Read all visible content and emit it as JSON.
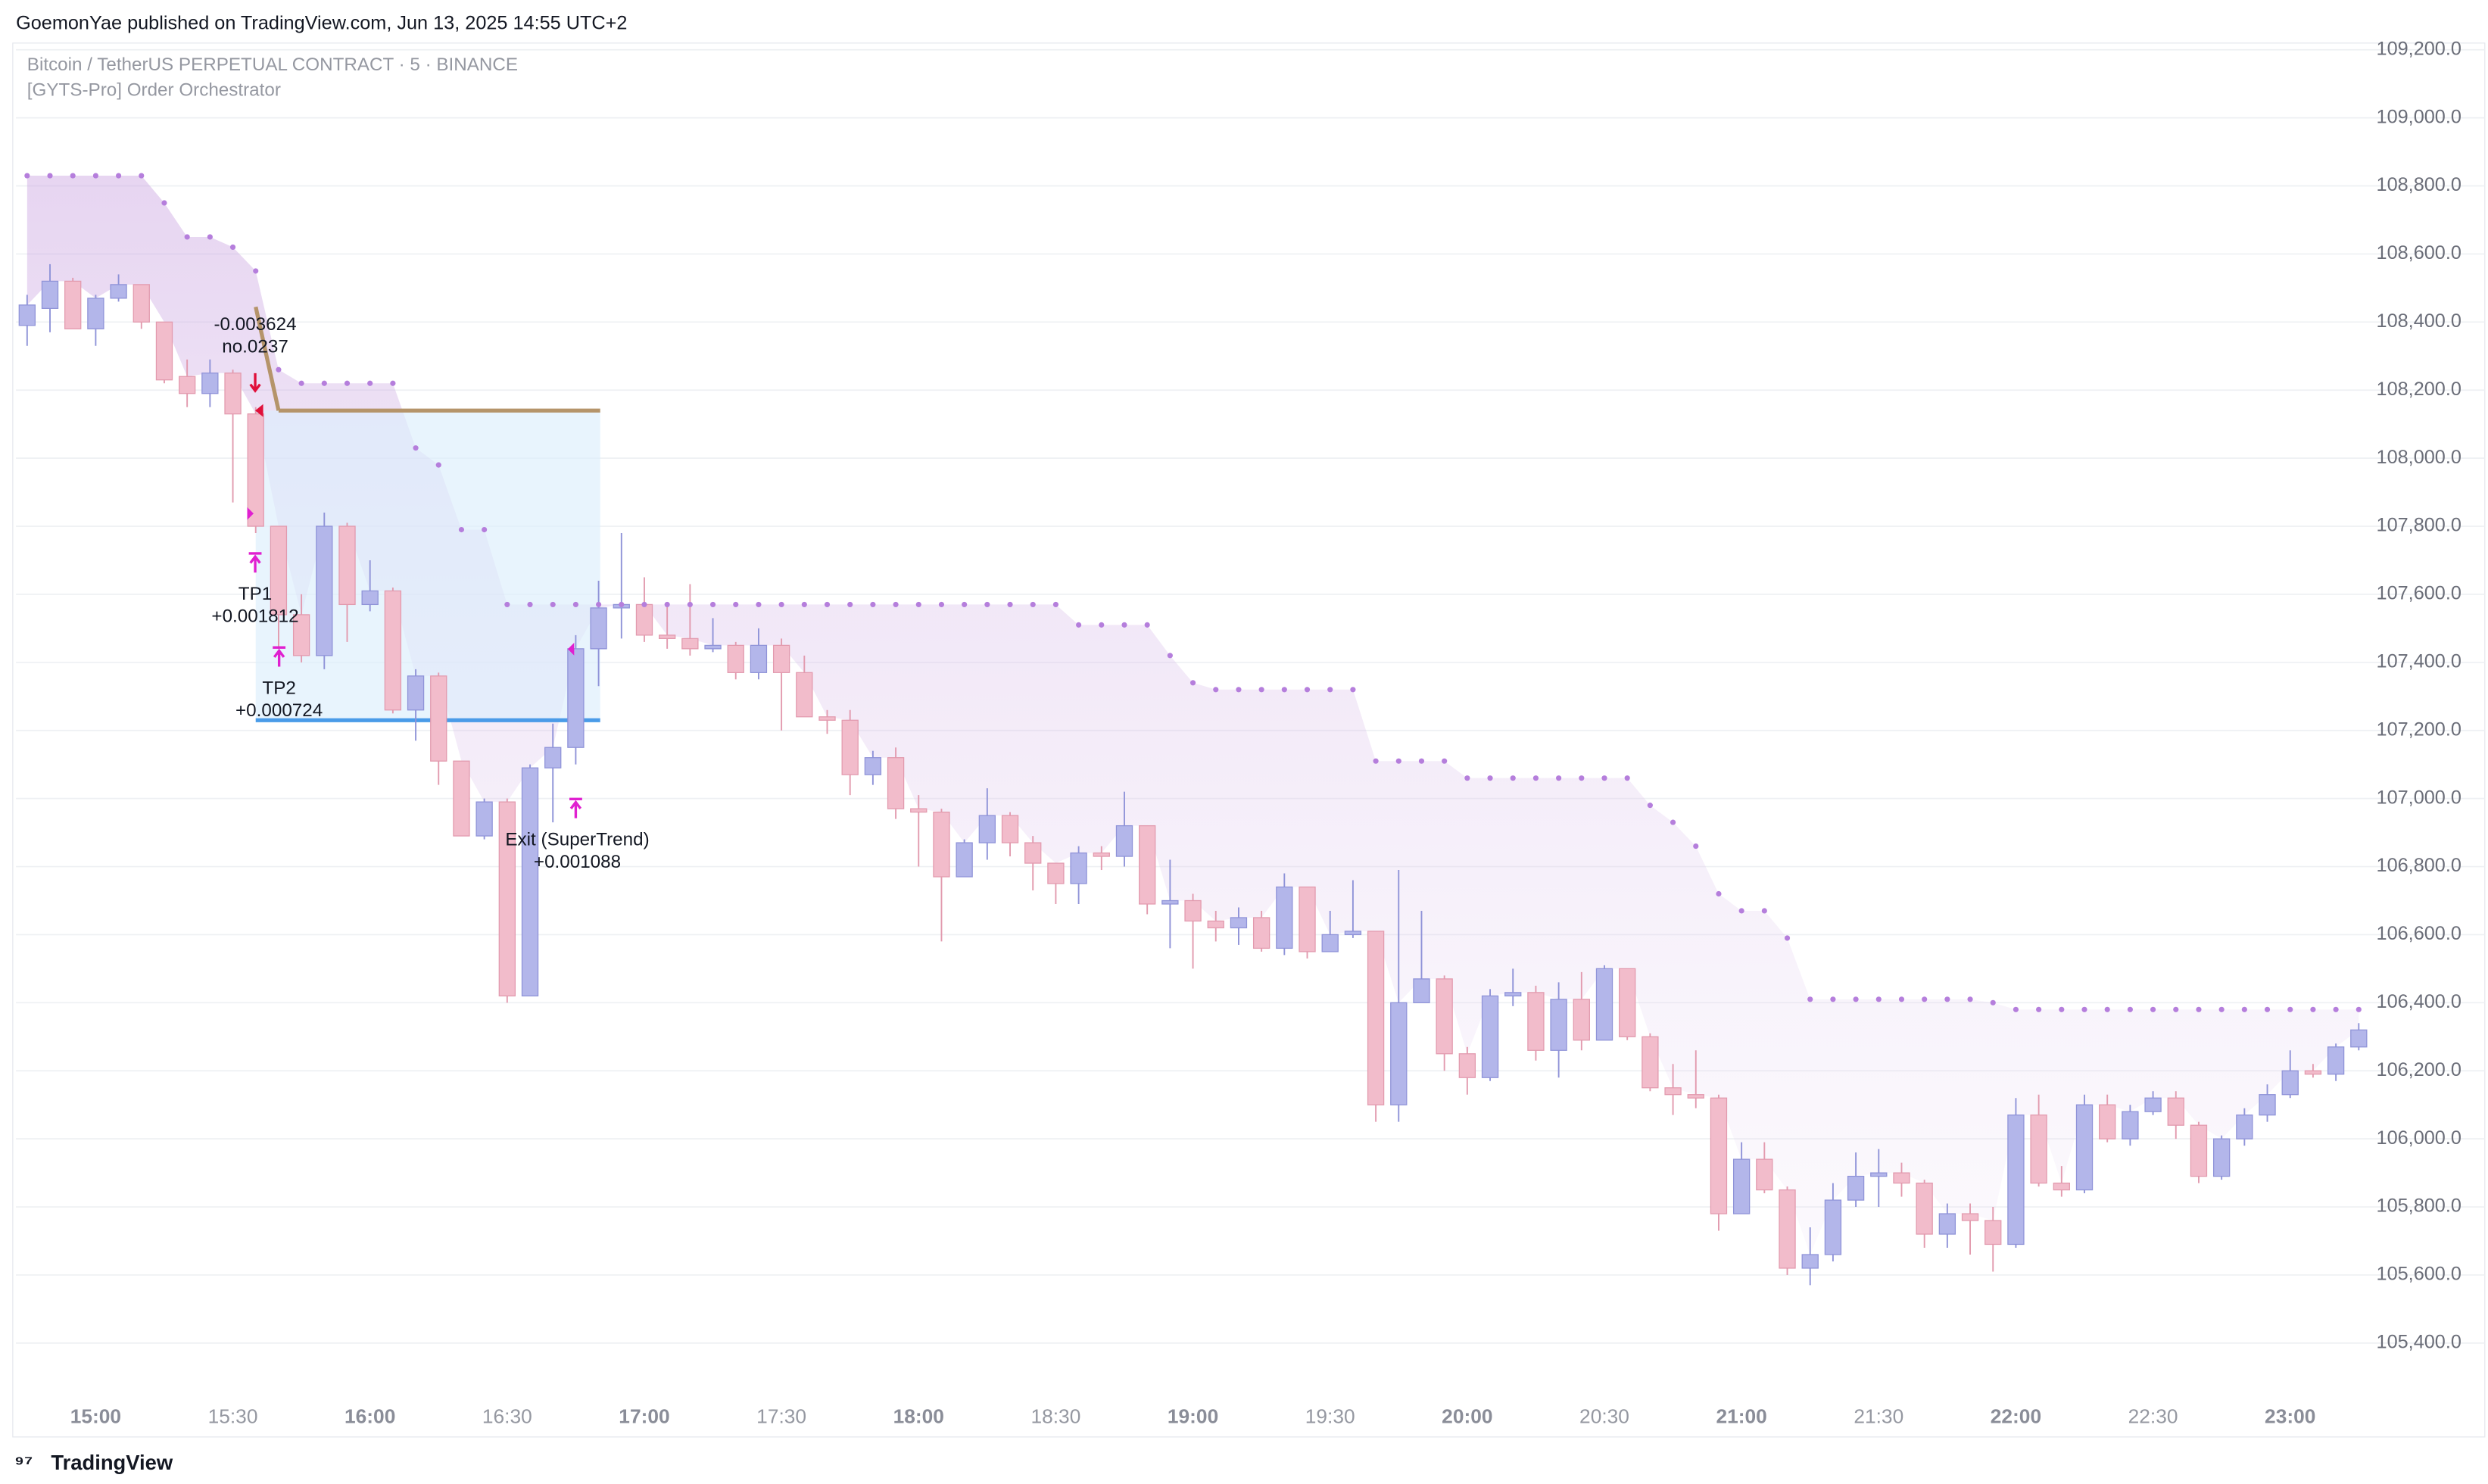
{
  "header": {
    "published": "GoemonYae published on TradingView.com, Jun 13, 2025 14:55 UTC+2",
    "brand": "TradingView"
  },
  "chart_data": {
    "type": "candlestick",
    "title": "Bitcoin / TetherUS PERPETUAL CONTRACT · 5 · BINANCE",
    "subtitle": "[GYTS-Pro] Order Orchestrator",
    "up_color": "#b3b6ea",
    "down_color": "#f2bccb",
    "categories": [
      null,
      null,
      null,
      "15:00",
      null,
      null,
      null,
      null,
      null,
      "15:30",
      null,
      null,
      null,
      null,
      null,
      "16:00",
      null,
      null,
      null,
      null,
      null,
      "16:30",
      null,
      null,
      null,
      null,
      null,
      "17:00",
      null,
      null,
      null,
      null,
      null,
      "17:30",
      null,
      null,
      null,
      null,
      null,
      "18:00",
      null,
      null,
      null,
      null,
      null,
      "18:30",
      null,
      null,
      null,
      null,
      null,
      "19:00",
      null,
      null,
      null,
      null,
      null,
      "19:30",
      null,
      null,
      null,
      null,
      null,
      "20:00",
      null,
      null,
      null,
      null,
      null,
      "20:30",
      null,
      null,
      null,
      null,
      null,
      "21:00",
      null,
      null,
      null,
      null,
      null,
      "21:30",
      null,
      null,
      null,
      null,
      null,
      "22:00",
      null,
      null,
      null,
      null,
      null,
      "22:30",
      null,
      null,
      null,
      null,
      null,
      "23:00",
      null,
      null,
      null
    ],
    "ohlc": [
      [
        108390,
        108480,
        108330,
        108450
      ],
      [
        108440,
        108570,
        108370,
        108520
      ],
      [
        108520,
        108530,
        108380,
        108380
      ],
      [
        108380,
        108480,
        108330,
        108470
      ],
      [
        108470,
        108540,
        108460,
        108510
      ],
      [
        108510,
        108510,
        108380,
        108400
      ],
      [
        108400,
        108400,
        108220,
        108230
      ],
      [
        108240,
        108290,
        108150,
        108190
      ],
      [
        108190,
        108290,
        108150,
        108250
      ],
      [
        108250,
        108260,
        107870,
        108130
      ],
      [
        108130,
        108150,
        107780,
        107800
      ],
      [
        107800,
        107800,
        107440,
        107540
      ],
      [
        107540,
        107600,
        107400,
        107420
      ],
      [
        107420,
        107840,
        107380,
        107800
      ],
      [
        107800,
        107810,
        107460,
        107570
      ],
      [
        107570,
        107700,
        107550,
        107610
      ],
      [
        107610,
        107620,
        107250,
        107260
      ],
      [
        107260,
        107380,
        107170,
        107360
      ],
      [
        107360,
        107370,
        107040,
        107110
      ],
      [
        107110,
        107110,
        106890,
        106890
      ],
      [
        106890,
        107000,
        106880,
        106990
      ],
      [
        106990,
        107000,
        106400,
        106420
      ],
      [
        106420,
        107100,
        106420,
        107090
      ],
      [
        107090,
        107220,
        106930,
        107150
      ],
      [
        107150,
        107480,
        107100,
        107440
      ],
      [
        107440,
        107640,
        107330,
        107560
      ],
      [
        107560,
        107780,
        107470,
        107570
      ],
      [
        107570,
        107650,
        107460,
        107480
      ],
      [
        107480,
        107570,
        107440,
        107470
      ],
      [
        107470,
        107630,
        107420,
        107440
      ],
      [
        107440,
        107530,
        107430,
        107450
      ],
      [
        107450,
        107460,
        107350,
        107370
      ],
      [
        107370,
        107500,
        107350,
        107450
      ],
      [
        107450,
        107470,
        107200,
        107370
      ],
      [
        107370,
        107420,
        107240,
        107240
      ],
      [
        107240,
        107260,
        107190,
        107230
      ],
      [
        107230,
        107260,
        107010,
        107070
      ],
      [
        107070,
        107140,
        107040,
        107120
      ],
      [
        107120,
        107150,
        106940,
        106970
      ],
      [
        106970,
        107010,
        106800,
        106960
      ],
      [
        106960,
        106970,
        106580,
        106770
      ],
      [
        106770,
        106880,
        106770,
        106870
      ],
      [
        106870,
        107030,
        106820,
        106950
      ],
      [
        106950,
        106960,
        106830,
        106870
      ],
      [
        106870,
        106890,
        106730,
        106810
      ],
      [
        106810,
        106810,
        106690,
        106750
      ],
      [
        106750,
        106860,
        106690,
        106840
      ],
      [
        106840,
        106860,
        106790,
        106830
      ],
      [
        106830,
        107020,
        106800,
        106920
      ],
      [
        106920,
        106920,
        106660,
        106690
      ],
      [
        106690,
        106820,
        106560,
        106700
      ],
      [
        106700,
        106720,
        106500,
        106640
      ],
      [
        106640,
        106670,
        106580,
        106620
      ],
      [
        106620,
        106680,
        106570,
        106650
      ],
      [
        106650,
        106670,
        106550,
        106560
      ],
      [
        106560,
        106780,
        106540,
        106740
      ],
      [
        106740,
        106740,
        106530,
        106550
      ],
      [
        106550,
        106670,
        106550,
        106600
      ],
      [
        106600,
        106760,
        106590,
        106610
      ],
      [
        106610,
        106610,
        106050,
        106100
      ],
      [
        106100,
        106790,
        106050,
        106400
      ],
      [
        106400,
        106670,
        106400,
        106470
      ],
      [
        106470,
        106480,
        106200,
        106250
      ],
      [
        106250,
        106270,
        106130,
        106180
      ],
      [
        106180,
        106440,
        106170,
        106420
      ],
      [
        106420,
        106500,
        106390,
        106430
      ],
      [
        106430,
        106450,
        106230,
        106260
      ],
      [
        106260,
        106460,
        106180,
        106410
      ],
      [
        106410,
        106490,
        106260,
        106290
      ],
      [
        106290,
        106510,
        106290,
        106500
      ],
      [
        106500,
        106500,
        106290,
        106300
      ],
      [
        106300,
        106310,
        106140,
        106150
      ],
      [
        106150,
        106220,
        106070,
        106130
      ],
      [
        106130,
        106260,
        106090,
        106120
      ],
      [
        106120,
        106130,
        105730,
        105780
      ],
      [
        105780,
        105990,
        105780,
        105940
      ],
      [
        105940,
        105990,
        105840,
        105850
      ],
      [
        105850,
        105860,
        105600,
        105620
      ],
      [
        105620,
        105740,
        105570,
        105660
      ],
      [
        105660,
        105870,
        105640,
        105820
      ],
      [
        105820,
        105960,
        105800,
        105890
      ],
      [
        105890,
        105970,
        105800,
        105900
      ],
      [
        105900,
        105930,
        105830,
        105870
      ],
      [
        105870,
        105880,
        105680,
        105720
      ],
      [
        105720,
        105810,
        105680,
        105780
      ],
      [
        105780,
        105810,
        105660,
        105760
      ],
      [
        105760,
        105800,
        105610,
        105690
      ],
      [
        105690,
        106120,
        105680,
        106070
      ],
      [
        106070,
        106130,
        105860,
        105870
      ],
      [
        105870,
        105920,
        105830,
        105850
      ],
      [
        105850,
        106130,
        105840,
        106100
      ],
      [
        106100,
        106130,
        105990,
        106000
      ],
      [
        106000,
        106100,
        105980,
        106080
      ],
      [
        106080,
        106140,
        106070,
        106120
      ],
      [
        106120,
        106140,
        106000,
        106040
      ],
      [
        106040,
        106050,
        105870,
        105890
      ],
      [
        105890,
        106010,
        105880,
        106000
      ],
      [
        106000,
        106090,
        105980,
        106070
      ],
      [
        106070,
        106160,
        106050,
        106130
      ],
      [
        106130,
        106260,
        106120,
        106200
      ],
      [
        106200,
        106220,
        106180,
        106190
      ],
      [
        106190,
        106280,
        106170,
        106270
      ],
      [
        106270,
        106340,
        106260,
        106320
      ]
    ],
    "supertrend": {
      "color": "#b57edc",
      "values": [
        108830,
        108830,
        108830,
        108830,
        108830,
        108830,
        108750,
        108650,
        108650,
        108620,
        108550,
        108260,
        108220,
        108220,
        108220,
        108220,
        108220,
        108030,
        107980,
        107790,
        107790,
        107570,
        107570,
        107570,
        107570,
        107570,
        107570,
        107570,
        107570,
        107570,
        107570,
        107570,
        107570,
        107570,
        107570,
        107570,
        107570,
        107570,
        107570,
        107570,
        107570,
        107570,
        107570,
        107570,
        107570,
        107570,
        107510,
        107510,
        107510,
        107510,
        107420,
        107340,
        107320,
        107320,
        107320,
        107320,
        107320,
        107320,
        107320,
        107110,
        107110,
        107110,
        107110,
        107060,
        107060,
        107060,
        107060,
        107060,
        107060,
        107060,
        107060,
        106980,
        106930,
        106860,
        106720,
        106670,
        106670,
        106590,
        106410,
        106410,
        106410,
        106410,
        106410,
        106410,
        106410,
        106410,
        106400,
        106380,
        106380,
        106380,
        106380,
        106380,
        106380,
        106380,
        106380,
        106380,
        106380,
        106380,
        106380,
        106380,
        106380,
        106380,
        106380
      ]
    },
    "trade": {
      "entry_price": 108140,
      "target_price": 107230,
      "entry_color": "#b5946a",
      "target_color": "#4a9be8"
    },
    "annotations": {
      "entry_pnl": "-0.003624",
      "entry_id": "no.0237",
      "tp1": "TP1",
      "tp1_pnl": "+0.001812",
      "tp2": "TP2",
      "tp2_pnl": "+0.000724",
      "exit": "Exit (SuperTrend)",
      "exit_pnl": "+0.001088"
    },
    "ylim": [
      105260,
      109215
    ],
    "yticks": [
      {
        "value": 105400,
        "label": "105,400.0"
      },
      {
        "value": 105600,
        "label": "105,600.0"
      },
      {
        "value": 105800,
        "label": "105,800.0"
      },
      {
        "value": 106000,
        "label": "106,000.0"
      },
      {
        "value": 106200,
        "label": "106,200.0"
      },
      {
        "value": 106400,
        "label": "106,400.0"
      },
      {
        "value": 106600,
        "label": "106,600.0"
      },
      {
        "value": 106800,
        "label": "106,800.0"
      },
      {
        "value": 107000,
        "label": "107,000.0"
      },
      {
        "value": 107200,
        "label": "107,200.0"
      },
      {
        "value": 107400,
        "label": "107,400.0"
      },
      {
        "value": 107600,
        "label": "107,600.0"
      },
      {
        "value": 107800,
        "label": "107,800.0"
      },
      {
        "value": 108000,
        "label": "108,000.0"
      },
      {
        "value": 108200,
        "label": "108,200.0"
      },
      {
        "value": 108400,
        "label": "108,400.0"
      },
      {
        "value": 108600,
        "label": "108,600.0"
      },
      {
        "value": 108800,
        "label": "108,800.0"
      },
      {
        "value": 109000,
        "label": "109,000.0"
      },
      {
        "value": 109200,
        "label": "109,200.0"
      }
    ],
    "grid": true
  }
}
